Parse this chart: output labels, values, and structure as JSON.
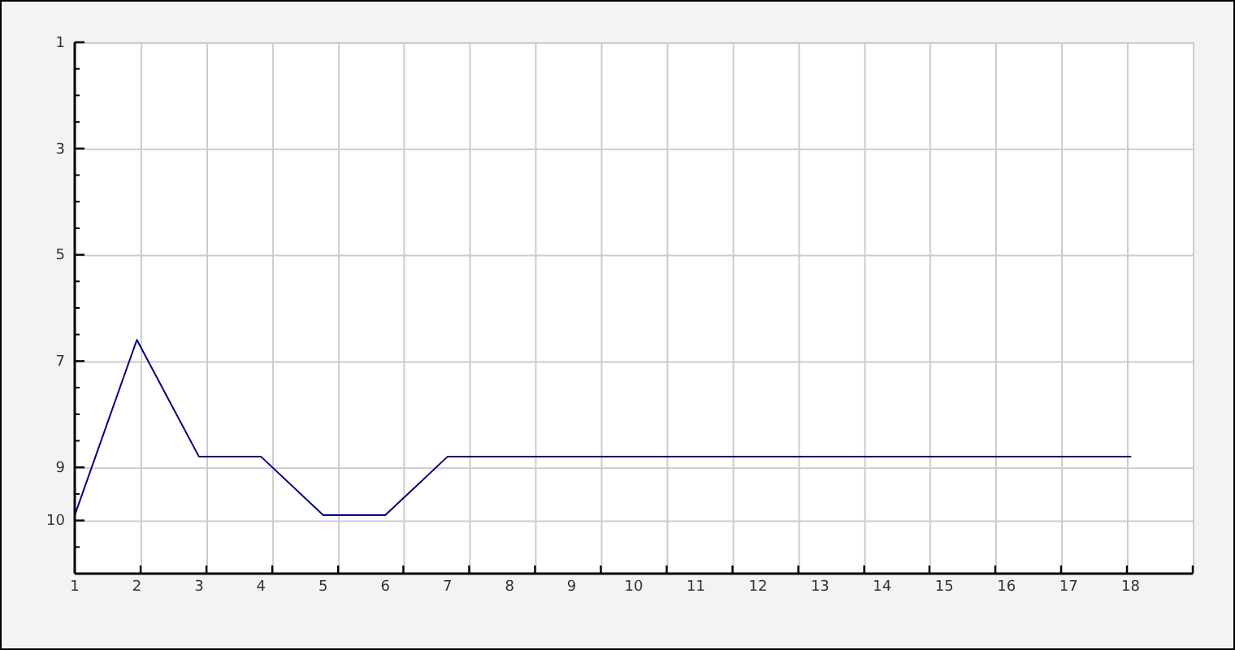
{
  "chart_data": {
    "type": "line",
    "x": [
      1,
      2,
      3,
      4,
      5,
      6,
      7,
      8,
      9,
      10,
      11,
      12,
      13,
      14,
      15,
      16,
      17,
      18
    ],
    "values": [
      9.9,
      6.6,
      8.8,
      8.8,
      9.9,
      9.9,
      8.8,
      8.8,
      8.8,
      8.8,
      8.8,
      8.8,
      8.8,
      8.8,
      8.8,
      8.8,
      8.8,
      8.8
    ],
    "color": "#000080",
    "xlim": [
      1,
      19
    ],
    "xticks": [
      1,
      2,
      3,
      4,
      5,
      6,
      7,
      8,
      9,
      10,
      11,
      12,
      13,
      14,
      15,
      16,
      17,
      18,
      {
        "value": 2.06,
        "label": null
      },
      {
        "value": 3.12,
        "label": null
      },
      {
        "value": 4.18,
        "label": null
      },
      {
        "value": 5.24,
        "label": null
      },
      {
        "value": 6.29,
        "label": null
      },
      {
        "value": 7.35,
        "label": null
      },
      {
        "value": 8.41,
        "label": null
      },
      {
        "value": 9.47,
        "label": null
      },
      {
        "value": 10.53,
        "label": null
      },
      {
        "value": 11.59,
        "label": null
      },
      {
        "value": 12.65,
        "label": null
      },
      {
        "value": 13.71,
        "label": null
      },
      {
        "value": 14.76,
        "label": null
      },
      {
        "value": 15.82,
        "label": null
      },
      {
        "value": 16.88,
        "label": null
      },
      {
        "value": 17.94,
        "label": null
      },
      {
        "value": 19,
        "label": null
      }
    ],
    "ylim": [
      11,
      1
    ],
    "yticks": [
      1,
      3,
      5,
      7,
      9,
      10,
      {
        "value": 1.5,
        "label": null
      },
      {
        "value": 2,
        "label": null
      },
      {
        "value": 2.5,
        "label": null
      },
      {
        "value": 3.5,
        "label": null
      },
      {
        "value": 4,
        "label": null
      },
      {
        "value": 4.5,
        "label": null
      },
      {
        "value": 5.5,
        "label": null
      },
      {
        "value": 6,
        "label": null
      },
      {
        "value": 6.5,
        "label": null
      },
      {
        "value": 7.5,
        "label": null
      },
      {
        "value": 8,
        "label": null
      },
      {
        "value": 8.5,
        "label": null
      },
      {
        "value": 9.5,
        "label": null
      },
      {
        "value": 10.5,
        "label": null
      }
    ],
    "grid": true
  }
}
